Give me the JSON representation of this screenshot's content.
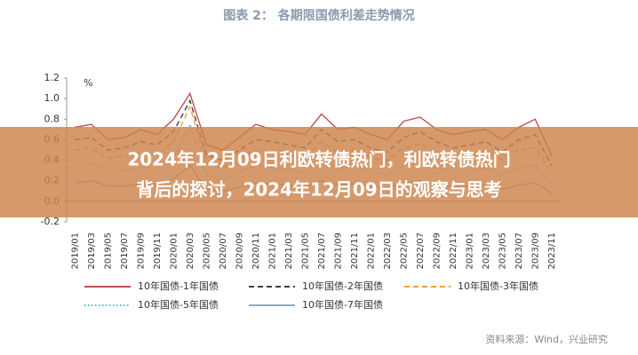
{
  "chart_data": {
    "type": "line",
    "title": "图表 2：  各期限国债利差走势情况",
    "y_unit": "%",
    "source": "资料来源：Wind，兴业研究",
    "overlay_lines": [
      "2024年12月09日利欧转债热门，利欧转债热门",
      "背后的探讨，2024年12月09日的观察与思考"
    ],
    "categories": [
      "2019/01",
      "2019/03",
      "2019/05",
      "2019/07",
      "2019/09",
      "2019/11",
      "2020/01",
      "2020/03",
      "2020/05",
      "2020/07",
      "2020/09",
      "2020/11",
      "2021/01",
      "2021/03",
      "2021/05",
      "2021/07",
      "2021/09",
      "2021/11",
      "2022/01",
      "2022/03",
      "2022/05",
      "2022/07",
      "2022/09",
      "2022/11",
      "2023/01",
      "2023/03",
      "2023/05",
      "2023/07",
      "2023/09",
      "2023/11"
    ],
    "series": [
      {
        "name": "10年国债-1年国债",
        "color": "#c0504d",
        "dash": "solid",
        "values": [
          0.72,
          0.75,
          0.6,
          0.62,
          0.7,
          0.65,
          0.8,
          1.05,
          0.55,
          0.5,
          0.62,
          0.75,
          0.7,
          0.68,
          0.65,
          0.85,
          0.7,
          0.72,
          0.65,
          0.6,
          0.78,
          0.82,
          0.7,
          0.65,
          0.68,
          0.7,
          0.6,
          0.72,
          0.8,
          0.45
        ]
      },
      {
        "name": "10年国债-2年国债",
        "color": "#404040",
        "dash": "dashed",
        "values": [
          0.6,
          0.62,
          0.5,
          0.52,
          0.58,
          0.55,
          0.68,
          0.98,
          0.45,
          0.4,
          0.5,
          0.6,
          0.58,
          0.55,
          0.52,
          0.7,
          0.58,
          0.6,
          0.52,
          0.48,
          0.62,
          0.68,
          0.58,
          0.52,
          0.55,
          0.58,
          0.48,
          0.6,
          0.65,
          0.35
        ]
      },
      {
        "name": "10年国债-3年国债",
        "color": "#f0a030",
        "dash": "dashed",
        "values": [
          0.5,
          0.52,
          0.42,
          0.44,
          0.48,
          0.45,
          0.58,
          0.92,
          0.38,
          0.32,
          0.42,
          0.5,
          0.48,
          0.45,
          0.42,
          0.58,
          0.48,
          0.5,
          0.42,
          0.4,
          0.52,
          0.56,
          0.48,
          0.42,
          0.45,
          0.48,
          0.4,
          0.5,
          0.52,
          0.28
        ]
      },
      {
        "name": "10年国债-5年国债",
        "color": "#4bc0c0",
        "dash": "dotted",
        "values": [
          0.35,
          0.36,
          0.3,
          0.3,
          0.33,
          0.32,
          0.42,
          0.75,
          0.25,
          0.2,
          0.28,
          0.35,
          0.33,
          0.3,
          0.28,
          0.4,
          0.32,
          0.34,
          0.28,
          0.26,
          0.35,
          0.38,
          0.32,
          0.28,
          0.3,
          0.32,
          0.26,
          0.33,
          0.35,
          0.18
        ]
      },
      {
        "name": "10年国债-7年国债",
        "color": "#8fa9c0",
        "dash": "solid",
        "values": [
          0.18,
          0.2,
          0.15,
          0.15,
          0.17,
          0.16,
          0.22,
          0.35,
          0.12,
          0.1,
          0.14,
          0.18,
          0.17,
          0.15,
          0.14,
          0.2,
          0.16,
          0.17,
          0.14,
          0.13,
          0.18,
          0.2,
          0.16,
          0.14,
          0.15,
          0.16,
          0.12,
          0.16,
          0.18,
          0.08
        ]
      }
    ],
    "ylim": [
      -0.2,
      1.2
    ],
    "yticks": [
      -0.2,
      {
        "value": 0,
        "label": "0.0"
      },
      0.2,
      0.4,
      0.6,
      0.8,
      {
        "value": 1,
        "label": "1.0"
      },
      1.2
    ]
  }
}
